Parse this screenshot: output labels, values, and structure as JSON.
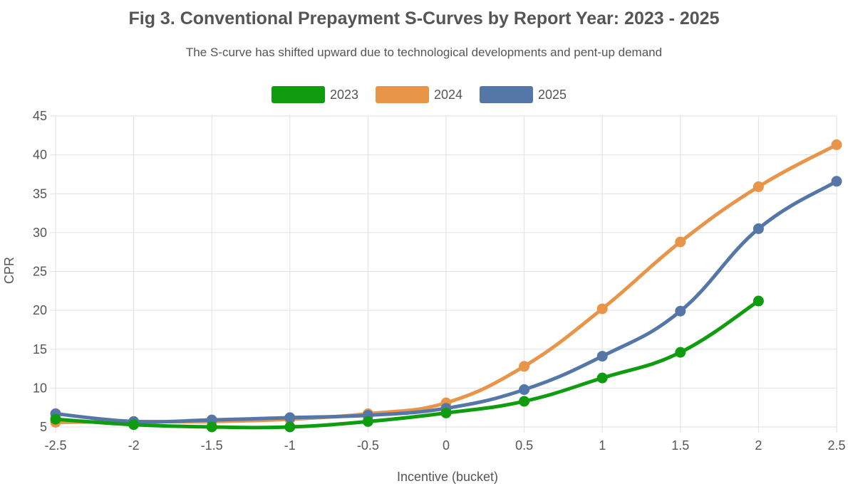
{
  "chart_data": {
    "type": "line",
    "title": "Fig 3. Conventional Prepayment S-Curves by Report Year: 2023 - 2025",
    "subtitle": "The S-curve has shifted upward due to technological developments and pent-up demand",
    "xlabel": "Incentive (bucket)",
    "ylabel": "CPR",
    "x": [
      -2.5,
      -2,
      -1.5,
      -1,
      -0.5,
      0,
      0.5,
      1,
      1.5,
      2,
      2.5
    ],
    "x_tick_labels": [
      "-2.5",
      "-2",
      "-1.5",
      "-1",
      "-0.5",
      "0",
      "0.5",
      "1",
      "1.5",
      "2",
      "2.5"
    ],
    "xlim": [
      -2.5,
      2.5
    ],
    "ylim": [
      5,
      45
    ],
    "y_ticks": [
      5,
      10,
      15,
      20,
      25,
      30,
      35,
      40,
      45
    ],
    "y_tick_labels": [
      "5",
      "10",
      "15",
      "20",
      "25",
      "30",
      "35",
      "40",
      "45"
    ],
    "grid": true,
    "legend_position": "top-center",
    "series": [
      {
        "name": "2023",
        "color": "#0f9d0f",
        "values": [
          6.0,
          5.3,
          5.0,
          5.0,
          5.7,
          6.8,
          8.3,
          11.3,
          14.6,
          21.2,
          null
        ]
      },
      {
        "name": "2024",
        "color": "#e8954a",
        "values": [
          5.6,
          5.7,
          5.7,
          6.0,
          6.7,
          8.1,
          12.8,
          20.2,
          28.8,
          35.9,
          41.3
        ]
      },
      {
        "name": "2025",
        "color": "#5577a8",
        "values": [
          6.7,
          5.7,
          5.9,
          6.2,
          6.5,
          7.4,
          9.8,
          14.1,
          19.9,
          30.5,
          36.6
        ]
      }
    ]
  }
}
